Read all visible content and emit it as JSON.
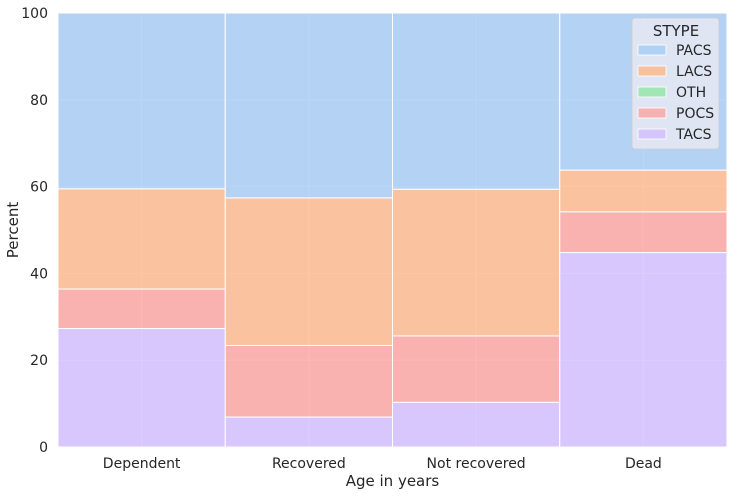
{
  "chart_data": {
    "type": "bar",
    "stacked": true,
    "normalized": true,
    "xlabel": "Age in years",
    "ylabel": "Percent",
    "ylim": [
      0,
      100
    ],
    "yticks": [
      0,
      20,
      40,
      60,
      80,
      100
    ],
    "categories": [
      "Dependent",
      "Recovered",
      "Not recovered",
      "Dead"
    ],
    "stack_order_bottom_to_top": [
      "TACS",
      "POCS",
      "OTH",
      "LACS",
      "PACS"
    ],
    "series": [
      {
        "name": "PACS",
        "color": "#a1c9f4",
        "values": [
          40.5,
          42.6,
          40.6,
          36.2
        ]
      },
      {
        "name": "LACS",
        "color": "#ffb482",
        "values": [
          23.1,
          34.0,
          33.8,
          9.6
        ]
      },
      {
        "name": "OTH",
        "color": "#8de5a1",
        "values": [
          0,
          0,
          0,
          0
        ]
      },
      {
        "name": "POCS",
        "color": "#ff9f9b",
        "values": [
          9.1,
          16.5,
          15.3,
          9.4
        ]
      },
      {
        "name": "TACS",
        "color": "#d0bbff",
        "values": [
          27.3,
          6.9,
          10.3,
          44.8
        ]
      }
    ],
    "legend": {
      "title": "STYPE",
      "placement": "top-right",
      "entries": [
        "PACS",
        "LACS",
        "OTH",
        "POCS",
        "TACS"
      ]
    },
    "grid": true,
    "background": "#eaeaf2"
  }
}
